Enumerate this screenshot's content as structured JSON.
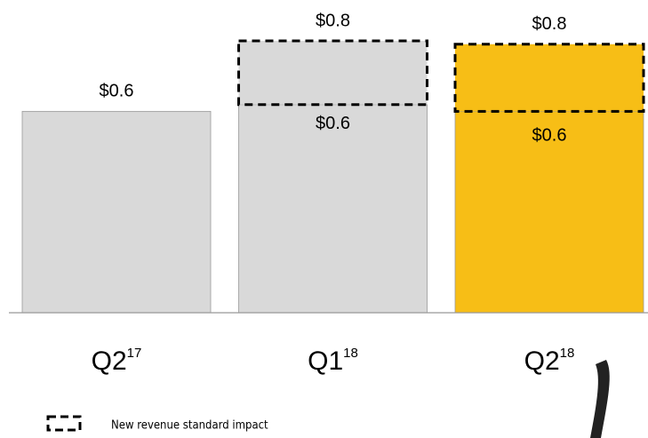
{
  "chart_data": {
    "type": "stacked_bar",
    "categories": [
      "Q2",
      "Q1",
      "Q2"
    ],
    "category_superscripts": [
      "17",
      "18",
      "18"
    ],
    "ylim": [
      0,
      0.9
    ],
    "series": [
      {
        "colors": [
          "#d9d9d9",
          "#d9d9d9",
          "#f7be16"
        ],
        "values": [
          0.6,
          0.62,
          0.6
        ],
        "value_labels": [
          null,
          "$0.6",
          "$0.6"
        ]
      },
      {
        "name": "New revenue standard impact",
        "style": "dashed",
        "values": [
          null,
          0.19,
          0.2
        ]
      }
    ],
    "totals": {
      "values": [
        0.6,
        0.81,
        0.8
      ],
      "value_labels": [
        "$0.6",
        "$0.8",
        "$0.8"
      ]
    }
  }
}
